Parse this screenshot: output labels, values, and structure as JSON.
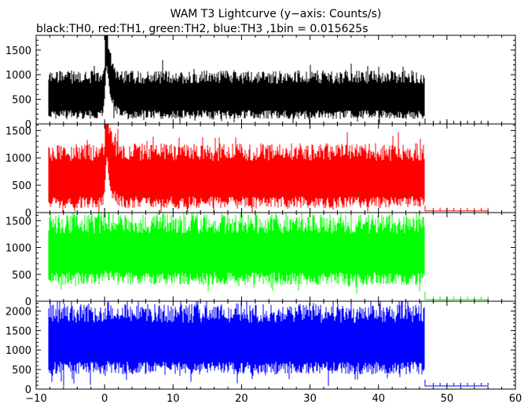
{
  "chart_data": {
    "type": "line",
    "title": "WAM T3 Lightcurve (y−axis: Counts/s)",
    "subtitle": "black:TH0, red:TH1, green:TH2, blue:TH3 ,1bin = 0.015625s",
    "xlabel": "",
    "ylabel": "",
    "xlim": [
      -10,
      60
    ],
    "x_ticks": [
      -10,
      0,
      10,
      20,
      30,
      40,
      50,
      60
    ],
    "x_tick_labels": [
      "−10",
      "0",
      "10",
      "20",
      "30",
      "40",
      "50",
      "60"
    ],
    "bin_width_s": 0.015625,
    "data_end": 46.8,
    "flat_end": 56,
    "grid": false,
    "legend": "none",
    "panels": [
      {
        "name": "TH0",
        "color": "#000000",
        "ylim": [
          0,
          1800
        ],
        "y_ticks": [
          0,
          500,
          1000,
          1500
        ],
        "baseline": 550,
        "noise": 300,
        "peak": {
          "t": 0.3,
          "value": 1800
        },
        "tail_value": 0
      },
      {
        "name": "TH1",
        "color": "#ff0000",
        "ylim": [
          0,
          1620
        ],
        "y_ticks": [
          0,
          500,
          1000,
          1500
        ],
        "baseline": 620,
        "noise": 360,
        "peak": {
          "t": 0.3,
          "value": 1620
        },
        "tail_value": 30
      },
      {
        "name": "TH2",
        "color": "#00ff00",
        "ylim": [
          0,
          1650
        ],
        "y_ticks": [
          0,
          500,
          1000,
          1500
        ],
        "baseline": 900,
        "noise": 400,
        "peak": {
          "t": 0.3,
          "value": 1000
        },
        "tail_value": 30
      },
      {
        "name": "TH3",
        "color": "#0000ff",
        "ylim": [
          0,
          2250
        ],
        "y_ticks": [
          0,
          500,
          1000,
          1500,
          2000
        ],
        "baseline": 1200,
        "noise": 550,
        "peak": {
          "t": 0.3,
          "value": 1300
        },
        "tail_value": 80
      }
    ]
  }
}
